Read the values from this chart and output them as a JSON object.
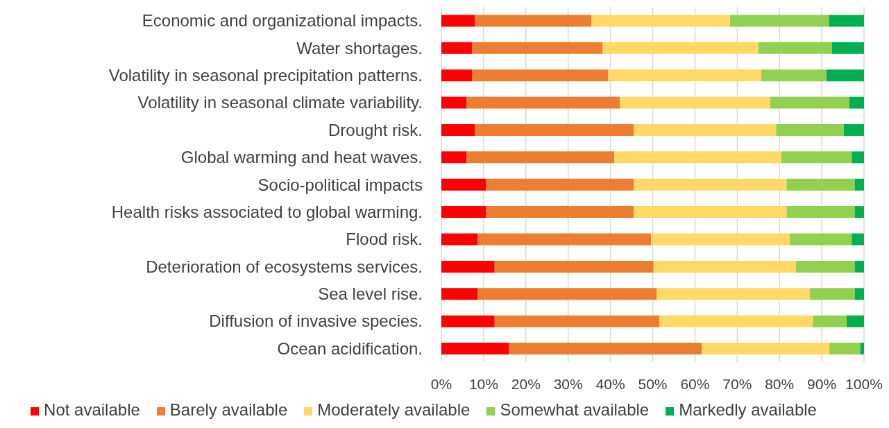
{
  "chart_data": {
    "type": "bar",
    "orientation": "horizontal",
    "stacked": true,
    "categories": [
      "Economic and organizational impacts.",
      "Water shortages.",
      "Volatility in seasonal precipitation patterns.",
      "Volatility in seasonal climate variability.",
      "Drought risk.",
      "Global warming and heat waves.",
      "Socio-political impacts",
      "Health risks associated to global warming.",
      "Flood risk.",
      "Deterioration of ecosystems services.",
      "Sea level rise.",
      "Diffusion of invasive species.",
      "Ocean acidification."
    ],
    "series": [
      {
        "name": "Not available",
        "color": "#ff0000",
        "values": [
          7.9,
          7.3,
          7.3,
          6.0,
          7.9,
          6.0,
          10.6,
          10.6,
          8.6,
          12.6,
          8.6,
          12.6,
          16.0
        ]
      },
      {
        "name": "Barely available",
        "color": "#ed7d31",
        "values": [
          27.6,
          30.8,
          32.2,
          36.2,
          37.6,
          34.9,
          34.9,
          34.9,
          41.0,
          37.6,
          42.3,
          39.0,
          45.6
        ]
      },
      {
        "name": "Moderately available",
        "color": "#ffd966",
        "values": [
          32.8,
          36.9,
          36.2,
          35.6,
          33.7,
          39.5,
          36.2,
          36.2,
          32.8,
          33.7,
          36.3,
          36.3,
          30.2
        ]
      },
      {
        "name": "Somewhat available",
        "color": "#92d050",
        "values": [
          23.4,
          17.4,
          15.4,
          18.7,
          16.0,
          16.7,
          16.1,
          16.1,
          14.7,
          13.9,
          10.6,
          8.0,
          7.3
        ]
      },
      {
        "name": "Markedly available",
        "color": "#00b050",
        "values": [
          8.3,
          7.6,
          8.9,
          3.5,
          4.8,
          2.9,
          2.2,
          2.2,
          2.9,
          2.2,
          2.2,
          4.1,
          0.9
        ]
      }
    ],
    "xlim": [
      0,
      100
    ],
    "xticks": [
      {
        "value": 0,
        "label": "0%"
      },
      {
        "value": 10,
        "label": "10%"
      },
      {
        "value": 20,
        "label": "20%"
      },
      {
        "value": 30,
        "label": "30%"
      },
      {
        "value": 40,
        "label": "40%"
      },
      {
        "value": 50,
        "label": "50%"
      },
      {
        "value": 60,
        "label": "60%"
      },
      {
        "value": 70,
        "label": "70%"
      },
      {
        "value": 80,
        "label": "80%"
      },
      {
        "value": 90,
        "label": "90%"
      },
      {
        "value": 100,
        "label": "100%"
      }
    ],
    "grid": "x",
    "legend": "bottom"
  }
}
